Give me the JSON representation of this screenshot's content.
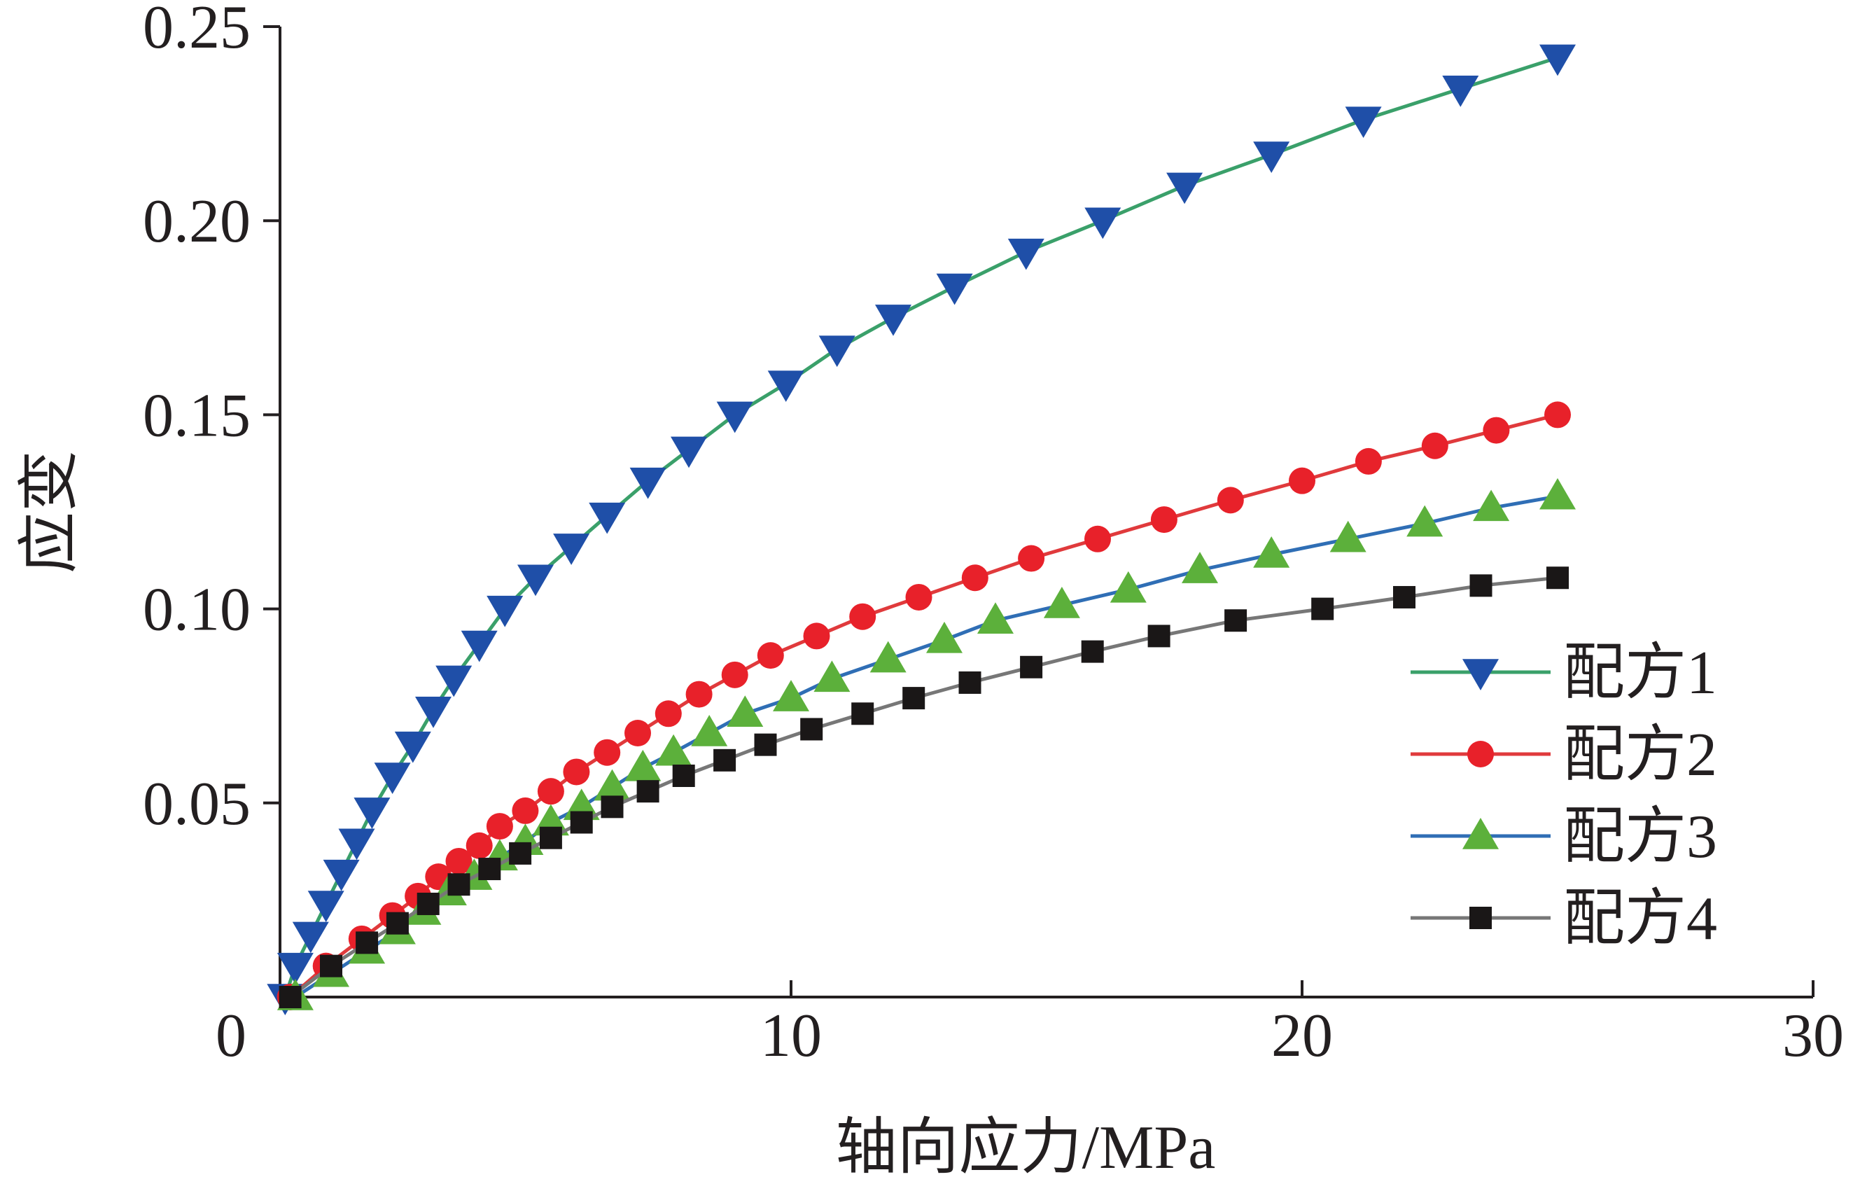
{
  "chart_data": {
    "type": "line",
    "title": "",
    "xlabel": "轴向应力/MPa",
    "ylabel": "应变",
    "xlim": [
      0,
      30
    ],
    "ylim": [
      0,
      0.25
    ],
    "x_ticks": [
      0,
      10,
      20,
      30
    ],
    "x_tick_labels": [
      "0",
      "10",
      "20",
      "30"
    ],
    "y_ticks": [
      0.05,
      0.1,
      0.15,
      0.2,
      0.25
    ],
    "y_tick_labels": [
      "0.05",
      "0.10",
      "0.15",
      "0.20",
      "0.25"
    ],
    "grid": false,
    "legend_position": "lower-right",
    "series": [
      {
        "name": "配方1",
        "line_color": "#3aa06a",
        "marker_color": "#1f4fa8",
        "marker": "triangle-down",
        "x": [
          0.1,
          0.3,
          0.6,
          0.9,
          1.2,
          1.5,
          1.8,
          2.2,
          2.6,
          3.0,
          3.4,
          3.9,
          4.4,
          5.0,
          5.7,
          6.4,
          7.2,
          8.0,
          8.9,
          9.9,
          10.9,
          12.0,
          13.2,
          14.6,
          16.1,
          17.7,
          19.4,
          21.2,
          23.1,
          25.0
        ],
        "y": [
          0.0,
          0.008,
          0.016,
          0.024,
          0.032,
          0.04,
          0.048,
          0.057,
          0.065,
          0.074,
          0.082,
          0.091,
          0.1,
          0.108,
          0.116,
          0.124,
          0.133,
          0.141,
          0.15,
          0.158,
          0.167,
          0.175,
          0.183,
          0.192,
          0.2,
          0.209,
          0.217,
          0.226,
          0.234,
          0.242
        ]
      },
      {
        "name": "配方2",
        "line_color": "#e03a3c",
        "marker_color": "#e8212a",
        "marker": "circle",
        "x": [
          0.2,
          0.9,
          1.6,
          2.2,
          2.7,
          3.1,
          3.5,
          3.9,
          4.3,
          4.8,
          5.3,
          5.8,
          6.4,
          7.0,
          7.6,
          8.2,
          8.9,
          9.6,
          10.5,
          11.4,
          12.5,
          13.6,
          14.7,
          16.0,
          17.3,
          18.6,
          20.0,
          21.3,
          22.6,
          23.8,
          25.0
        ],
        "y": [
          0.0,
          0.008,
          0.015,
          0.021,
          0.026,
          0.031,
          0.035,
          0.039,
          0.044,
          0.048,
          0.053,
          0.058,
          0.063,
          0.068,
          0.073,
          0.078,
          0.083,
          0.088,
          0.093,
          0.098,
          0.103,
          0.108,
          0.113,
          0.118,
          0.123,
          0.128,
          0.133,
          0.138,
          0.142,
          0.146,
          0.15
        ]
      },
      {
        "name": "配方3",
        "line_color": "#2f6eb5",
        "marker_color": "#5cb03b",
        "marker": "triangle-up",
        "x": [
          0.3,
          1.0,
          1.7,
          2.3,
          2.8,
          3.3,
          3.8,
          4.3,
          4.8,
          5.3,
          5.9,
          6.5,
          7.1,
          7.7,
          8.4,
          9.1,
          10.0,
          10.8,
          11.9,
          13.0,
          14.0,
          15.3,
          16.6,
          18.0,
          19.4,
          20.9,
          22.4,
          23.7,
          25.0
        ],
        "y": [
          0.0,
          0.006,
          0.012,
          0.017,
          0.022,
          0.027,
          0.031,
          0.036,
          0.04,
          0.045,
          0.049,
          0.054,
          0.059,
          0.063,
          0.068,
          0.073,
          0.077,
          0.082,
          0.087,
          0.092,
          0.097,
          0.101,
          0.105,
          0.11,
          0.114,
          0.118,
          0.122,
          0.126,
          0.129
        ]
      },
      {
        "name": "配方4",
        "line_color": "#777777",
        "marker_color": "#1a1717",
        "marker": "square",
        "x": [
          0.2,
          1.0,
          1.7,
          2.3,
          2.9,
          3.5,
          4.1,
          4.7,
          5.3,
          5.9,
          6.5,
          7.2,
          7.9,
          8.7,
          9.5,
          10.4,
          11.4,
          12.4,
          13.5,
          14.7,
          15.9,
          17.2,
          18.7,
          20.4,
          22.0,
          23.5,
          25.0
        ],
        "y": [
          0.0,
          0.008,
          0.014,
          0.019,
          0.024,
          0.029,
          0.033,
          0.037,
          0.041,
          0.045,
          0.049,
          0.053,
          0.057,
          0.061,
          0.065,
          0.069,
          0.073,
          0.077,
          0.081,
          0.085,
          0.089,
          0.093,
          0.097,
          0.1,
          0.103,
          0.106,
          0.108
        ]
      }
    ]
  }
}
